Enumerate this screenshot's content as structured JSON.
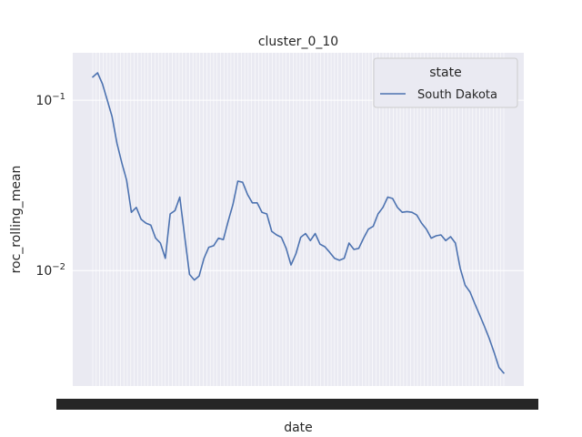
{
  "chart_data": {
    "type": "line",
    "title": "cluster_0_10",
    "xlabel": "date",
    "ylabel": "roc_rolling_mean",
    "yscale": "log",
    "ylim": [
      0.0021,
      0.19
    ],
    "yticks": [
      {
        "value": 0.1,
        "base": "10",
        "exp": "−1"
      },
      {
        "value": 0.01,
        "base": "10",
        "exp": "−2"
      }
    ],
    "x_tick_count": 120,
    "grid": true,
    "legend": {
      "title": "state",
      "placement": "top-right"
    },
    "colors": {
      "series": "#4c72b0",
      "plot_bg": "#eaeaf2",
      "grid": "#ffffff"
    },
    "series": [
      {
        "name": "South Dakota",
        "values": [
          0.137,
          0.145,
          0.125,
          0.1,
          0.08,
          0.056,
          0.043,
          0.034,
          0.022,
          0.0235,
          0.02,
          0.019,
          0.0185,
          0.0155,
          0.0145,
          0.0118,
          0.0215,
          0.0225,
          0.027,
          0.016,
          0.0095,
          0.0088,
          0.0093,
          0.0118,
          0.0137,
          0.014,
          0.0155,
          0.0152,
          0.0195,
          0.0245,
          0.0335,
          0.033,
          0.028,
          0.025,
          0.025,
          0.022,
          0.0215,
          0.017,
          0.0162,
          0.0157,
          0.0135,
          0.0108,
          0.0125,
          0.0157,
          0.0165,
          0.015,
          0.0165,
          0.0143,
          0.0138,
          0.0128,
          0.0118,
          0.0115,
          0.0118,
          0.0145,
          0.0133,
          0.0135,
          0.0155,
          0.0175,
          0.0182,
          0.0215,
          0.0235,
          0.027,
          0.0265,
          0.0235,
          0.022,
          0.0222,
          0.022,
          0.0212,
          0.019,
          0.0175,
          0.0155,
          0.016,
          0.0162,
          0.015,
          0.0158,
          0.0145,
          0.0103,
          0.0082,
          0.0075,
          0.0064,
          0.0055,
          0.0047,
          0.004,
          0.0033,
          0.0027,
          0.0025
        ]
      }
    ]
  }
}
